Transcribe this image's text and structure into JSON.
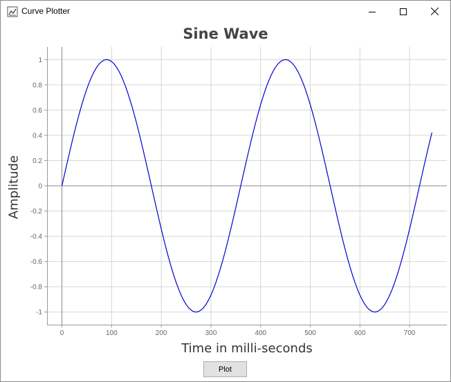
{
  "window": {
    "title": "Curve Plotter",
    "app_icon": "chart-icon",
    "controls": [
      "minimize-icon",
      "maximize-icon",
      "close-icon"
    ]
  },
  "plot_button_label": "Plot",
  "chart_data": {
    "type": "line",
    "title": "Sine Wave",
    "xlabel": "Time in milli-seconds",
    "ylabel": "Amplitude",
    "xlim": [
      -30,
      775
    ],
    "ylim": [
      -1.1,
      1.1
    ],
    "x_ticks": [
      0,
      100,
      200,
      300,
      400,
      500,
      600,
      700
    ],
    "x_tick_labels": [
      "0",
      "100",
      "200",
      "300",
      "400",
      "500",
      "600",
      "700"
    ],
    "y_ticks": [
      1,
      0.8,
      0.6,
      0.4,
      0.2,
      0,
      -0.2,
      -0.4,
      -0.6,
      -0.8,
      -1
    ],
    "y_tick_labels": [
      "1",
      "0.8",
      "0.6",
      "0.4",
      "0.2",
      "0",
      "-0.2",
      "-0.4",
      "-0.6",
      "-0.8",
      "-1"
    ],
    "grid": true,
    "series": [
      {
        "color": "#0000cc",
        "function": "sine",
        "period": 360,
        "amplitude": 1,
        "x_start": 0,
        "x_end": 745,
        "step": 5
      }
    ]
  }
}
